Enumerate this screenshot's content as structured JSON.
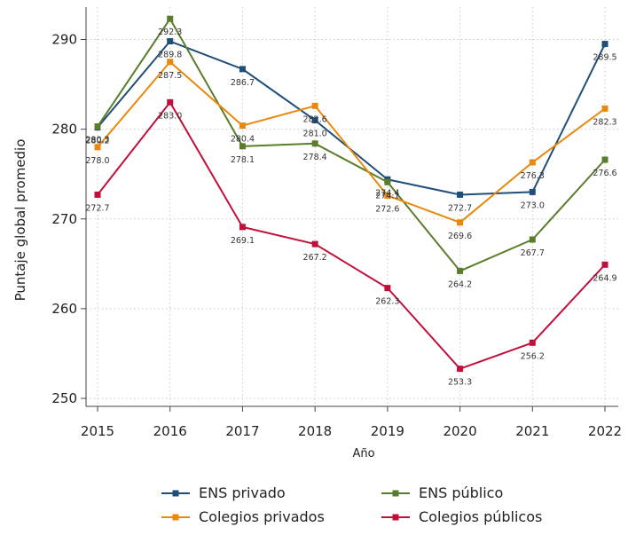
{
  "chart_data": {
    "type": "line",
    "xlabel": "Año",
    "ylabel": "Puntaje global promedio",
    "ylim": [
      248,
      294
    ],
    "yticks": [
      250,
      260,
      270,
      280,
      290
    ],
    "categories": [
      "2015",
      "2016",
      "2017",
      "2018",
      "2019",
      "2020",
      "2021",
      "2022"
    ],
    "grid": true,
    "legend_position": "bottom",
    "series": [
      {
        "name": "ENS privado",
        "color": "#1f4e79",
        "values": [
          280.2,
          289.8,
          286.7,
          281.0,
          274.4,
          272.7,
          273.0,
          289.5
        ]
      },
      {
        "name": "ENS público",
        "color": "#5a7d2a",
        "values": [
          280.3,
          292.3,
          278.1,
          278.4,
          274.1,
          264.2,
          267.7,
          276.6
        ]
      },
      {
        "name": "Colegios privados",
        "color": "#e8890c",
        "values": [
          278.0,
          287.5,
          280.4,
          282.6,
          272.6,
          269.6,
          276.3,
          282.3
        ]
      },
      {
        "name": "Colegios públicos",
        "color": "#c0103a",
        "values": [
          272.7,
          283.0,
          269.1,
          267.2,
          262.3,
          253.3,
          256.2,
          264.9
        ]
      }
    ]
  }
}
